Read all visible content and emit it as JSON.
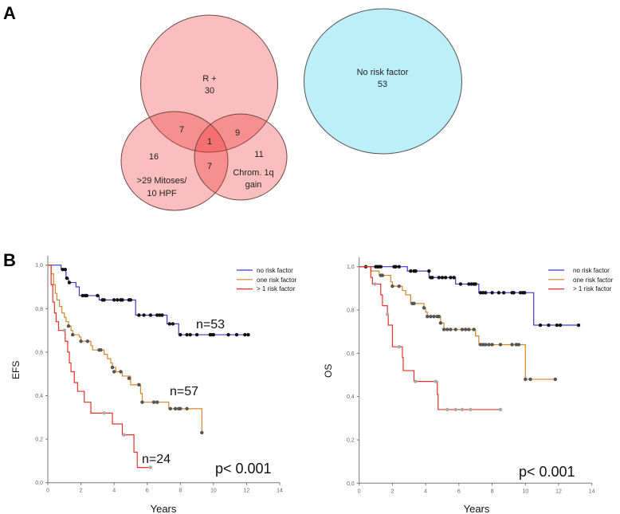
{
  "panels": {
    "a": "A",
    "b": "B"
  },
  "venn": {
    "colors": {
      "risk": "#fbb9b9",
      "none": "#bdeffb"
    },
    "r_plus_label": "R +",
    "r_plus_only": "30",
    "r_mitoses": "7",
    "all_three": "1",
    "r_chrom": "9",
    "mitoses_only": "16",
    "chrom_only": "11",
    "mitoses_chrom": "7",
    "mitoses_label_1": ">29 Mitoses/",
    "mitoses_label_2": "10 HPF",
    "chrom_label_1": "Chrom. 1q",
    "chrom_label_2": "gain",
    "none_label": "No risk factor",
    "none_count": "53"
  },
  "chart_data": [
    {
      "type": "line",
      "subtype": "kaplan-meier",
      "xlabel": "Years",
      "ylabel": "EFS",
      "xlim": [
        0,
        14
      ],
      "ylim": [
        0,
        1
      ],
      "xticks": [
        "0",
        "2",
        "4",
        "6",
        "8",
        "10",
        "12",
        "14"
      ],
      "yticks": [
        "0,0",
        "0,2",
        "0,4",
        "0,6",
        "0,8",
        "1,0"
      ],
      "legend_position": "top-right",
      "pvalue": "p< 0.001",
      "series": [
        {
          "name": "no risk factor",
          "color": "#3a3ad0",
          "censor_color": "#111111",
          "n_label": "n=53",
          "steps": [
            [
              0,
              1
            ],
            [
              0.8,
              0.98
            ],
            [
              1.1,
              0.94
            ],
            [
              1.25,
              0.92
            ],
            [
              1.7,
              0.9
            ],
            [
              1.9,
              0.86
            ],
            [
              3.1,
              0.84
            ],
            [
              5.3,
              0.77
            ],
            [
              7.2,
              0.73
            ],
            [
              7.9,
              0.68
            ]
          ],
          "end": 12.1,
          "censors": [
            [
              0.9,
              0.98
            ],
            [
              1.05,
              0.98
            ],
            [
              1.15,
              0.94
            ],
            [
              1.3,
              0.92
            ],
            [
              2.1,
              0.86
            ],
            [
              2.25,
              0.86
            ],
            [
              2.35,
              0.86
            ],
            [
              3.0,
              0.86
            ],
            [
              3.3,
              0.84
            ],
            [
              3.4,
              0.84
            ],
            [
              4.0,
              0.84
            ],
            [
              4.2,
              0.84
            ],
            [
              4.4,
              0.84
            ],
            [
              4.5,
              0.84
            ],
            [
              4.9,
              0.84
            ],
            [
              5.0,
              0.84
            ],
            [
              5.5,
              0.77
            ],
            [
              5.8,
              0.77
            ],
            [
              6.2,
              0.77
            ],
            [
              6.6,
              0.77
            ],
            [
              6.75,
              0.77
            ],
            [
              6.9,
              0.77
            ],
            [
              7.35,
              0.73
            ],
            [
              7.55,
              0.73
            ],
            [
              8.0,
              0.68
            ],
            [
              8.4,
              0.68
            ],
            [
              8.6,
              0.68
            ],
            [
              9.0,
              0.68
            ],
            [
              9.8,
              0.68
            ],
            [
              9.9,
              0.68
            ],
            [
              10.0,
              0.68
            ],
            [
              10.9,
              0.68
            ],
            [
              11.4,
              0.68
            ],
            [
              11.9,
              0.68
            ],
            [
              12.1,
              0.68
            ]
          ]
        },
        {
          "name": "one risk factor",
          "color": "#d4862a",
          "censor_color": "#555555",
          "n_label": "n=57",
          "steps": [
            [
              0,
              1
            ],
            [
              0.2,
              0.96
            ],
            [
              0.35,
              0.91
            ],
            [
              0.45,
              0.87
            ],
            [
              0.55,
              0.84
            ],
            [
              0.7,
              0.81
            ],
            [
              0.85,
              0.78
            ],
            [
              1.0,
              0.76
            ],
            [
              1.1,
              0.74
            ],
            [
              1.25,
              0.72
            ],
            [
              1.4,
              0.7
            ],
            [
              1.5,
              0.68
            ],
            [
              1.9,
              0.67
            ],
            [
              2.0,
              0.65
            ],
            [
              2.6,
              0.63
            ],
            [
              2.7,
              0.61
            ],
            [
              3.4,
              0.59
            ],
            [
              3.6,
              0.57
            ],
            [
              3.8,
              0.55
            ],
            [
              3.9,
              0.53
            ],
            [
              4.1,
              0.51
            ],
            [
              4.5,
              0.49
            ],
            [
              5.0,
              0.45
            ],
            [
              5.6,
              0.41
            ],
            [
              5.7,
              0.37
            ],
            [
              7.3,
              0.34
            ],
            [
              9.3,
              0.23
            ]
          ],
          "end": 9.3,
          "censors": [
            [
              1.25,
              0.72
            ],
            [
              1.5,
              0.68
            ],
            [
              2.0,
              0.65
            ],
            [
              2.4,
              0.65
            ],
            [
              3.1,
              0.61
            ],
            [
              3.2,
              0.61
            ],
            [
              3.9,
              0.53
            ],
            [
              4.0,
              0.51
            ],
            [
              4.4,
              0.51
            ],
            [
              4.9,
              0.48
            ],
            [
              5.5,
              0.45
            ],
            [
              5.7,
              0.37
            ],
            [
              6.4,
              0.37
            ],
            [
              6.6,
              0.37
            ],
            [
              7.4,
              0.34
            ],
            [
              7.7,
              0.34
            ],
            [
              7.9,
              0.34
            ],
            [
              8.0,
              0.34
            ],
            [
              8.4,
              0.34
            ],
            [
              9.3,
              0.23
            ]
          ]
        },
        {
          "name": "> 1 risk factor",
          "color": "#e8302a",
          "censor_color": "#aaaaaa",
          "n_label": "n=24",
          "steps": [
            [
              0,
              1
            ],
            [
              0.2,
              0.91
            ],
            [
              0.3,
              0.83
            ],
            [
              0.4,
              0.78
            ],
            [
              0.5,
              0.74
            ],
            [
              0.65,
              0.7
            ],
            [
              1.05,
              0.65
            ],
            [
              1.2,
              0.6
            ],
            [
              1.3,
              0.55
            ],
            [
              1.4,
              0.51
            ],
            [
              1.6,
              0.46
            ],
            [
              1.8,
              0.42
            ],
            [
              2.2,
              0.37
            ],
            [
              2.6,
              0.32
            ],
            [
              3.9,
              0.27
            ],
            [
              4.5,
              0.22
            ],
            [
              5.2,
              0.14
            ],
            [
              5.4,
              0.07
            ]
          ],
          "end": 6.2,
          "censors": [
            [
              1.0,
              0.7
            ],
            [
              3.4,
              0.32
            ],
            [
              4.6,
              0.22
            ],
            [
              6.2,
              0.07
            ]
          ]
        }
      ]
    },
    {
      "type": "line",
      "subtype": "kaplan-meier",
      "xlabel": "Years",
      "ylabel": "OS",
      "xlim": [
        0,
        14
      ],
      "ylim": [
        0,
        1
      ],
      "xticks": [
        "0",
        "2",
        "4",
        "6",
        "8",
        "10",
        "12",
        "14"
      ],
      "yticks": [
        "0,0",
        "0,2",
        "0,4",
        "0,6",
        "0,8",
        "1,0"
      ],
      "legend_position": "top-right",
      "pvalue": "p< 0.001",
      "series": [
        {
          "name": "no risk factor",
          "color": "#3a3ad0",
          "censor_color": "#111111",
          "steps": [
            [
              0,
              1
            ],
            [
              2.9,
              0.98
            ],
            [
              4.2,
              0.95
            ],
            [
              5.8,
              0.92
            ],
            [
              7.2,
              0.88
            ],
            [
              10.5,
              0.73
            ]
          ],
          "end": 13.2,
          "censors": [
            [
              0.4,
              1
            ],
            [
              1.0,
              1
            ],
            [
              1.1,
              1
            ],
            [
              1.2,
              1
            ],
            [
              1.3,
              1
            ],
            [
              2.1,
              1
            ],
            [
              2.2,
              1
            ],
            [
              2.4,
              1
            ],
            [
              3.1,
              0.98
            ],
            [
              3.3,
              0.98
            ],
            [
              3.4,
              0.98
            ],
            [
              4.2,
              0.98
            ],
            [
              4.3,
              0.95
            ],
            [
              4.4,
              0.95
            ],
            [
              4.8,
              0.95
            ],
            [
              5.0,
              0.95
            ],
            [
              5.2,
              0.95
            ],
            [
              5.5,
              0.95
            ],
            [
              5.7,
              0.95
            ],
            [
              6.1,
              0.92
            ],
            [
              6.6,
              0.92
            ],
            [
              6.75,
              0.92
            ],
            [
              6.9,
              0.92
            ],
            [
              7.0,
              0.92
            ],
            [
              7.3,
              0.88
            ],
            [
              7.45,
              0.88
            ],
            [
              7.6,
              0.88
            ],
            [
              8.0,
              0.88
            ],
            [
              8.4,
              0.88
            ],
            [
              8.7,
              0.88
            ],
            [
              9.2,
              0.88
            ],
            [
              9.3,
              0.88
            ],
            [
              9.7,
              0.88
            ],
            [
              9.85,
              0.88
            ],
            [
              9.95,
              0.88
            ],
            [
              10.9,
              0.73
            ],
            [
              11.4,
              0.73
            ],
            [
              11.9,
              0.73
            ],
            [
              12.1,
              0.73
            ],
            [
              13.2,
              0.73
            ]
          ]
        },
        {
          "name": "one risk factor",
          "color": "#d4862a",
          "censor_color": "#555555",
          "steps": [
            [
              0,
              1
            ],
            [
              0.7,
              0.98
            ],
            [
              1.2,
              0.96
            ],
            [
              1.9,
              0.93
            ],
            [
              2.0,
              0.91
            ],
            [
              2.6,
              0.89
            ],
            [
              2.8,
              0.87
            ],
            [
              3.1,
              0.83
            ],
            [
              3.9,
              0.81
            ],
            [
              4.0,
              0.79
            ],
            [
              4.1,
              0.77
            ],
            [
              4.9,
              0.74
            ],
            [
              5.1,
              0.71
            ],
            [
              7.0,
              0.68
            ],
            [
              7.2,
              0.64
            ],
            [
              10.0,
              0.48
            ]
          ],
          "end": 11.8,
          "censors": [
            [
              1.3,
              0.96
            ],
            [
              1.4,
              0.96
            ],
            [
              2.0,
              0.91
            ],
            [
              2.4,
              0.91
            ],
            [
              3.2,
              0.83
            ],
            [
              3.3,
              0.83
            ],
            [
              3.9,
              0.81
            ],
            [
              4.1,
              0.77
            ],
            [
              4.3,
              0.77
            ],
            [
              4.5,
              0.77
            ],
            [
              4.7,
              0.77
            ],
            [
              4.8,
              0.77
            ],
            [
              4.9,
              0.74
            ],
            [
              5.1,
              0.71
            ],
            [
              5.3,
              0.71
            ],
            [
              5.5,
              0.71
            ],
            [
              5.8,
              0.71
            ],
            [
              6.2,
              0.71
            ],
            [
              6.4,
              0.71
            ],
            [
              6.6,
              0.71
            ],
            [
              6.9,
              0.71
            ],
            [
              7.3,
              0.64
            ],
            [
              7.45,
              0.64
            ],
            [
              7.6,
              0.64
            ],
            [
              7.8,
              0.64
            ],
            [
              8.0,
              0.64
            ],
            [
              8.5,
              0.64
            ],
            [
              9.2,
              0.64
            ],
            [
              9.45,
              0.64
            ],
            [
              9.6,
              0.64
            ],
            [
              10.0,
              0.48
            ],
            [
              10.3,
              0.48
            ],
            [
              11.8,
              0.48
            ]
          ]
        },
        {
          "name": "> 1 risk factor",
          "color": "#e8302a",
          "censor_color": "#aaaaaa",
          "steps": [
            [
              0,
              1
            ],
            [
              0.7,
              0.95
            ],
            [
              0.8,
              0.92
            ],
            [
              1.3,
              0.87
            ],
            [
              1.4,
              0.82
            ],
            [
              1.7,
              0.78
            ],
            [
              1.75,
              0.73
            ],
            [
              2.0,
              0.63
            ],
            [
              2.6,
              0.58
            ],
            [
              2.65,
              0.52
            ],
            [
              3.3,
              0.47
            ],
            [
              4.7,
              0.41
            ],
            [
              4.75,
              0.34
            ]
          ],
          "end": 8.5,
          "censors": [
            [
              0.95,
              0.92
            ],
            [
              1.7,
              0.78
            ],
            [
              2.4,
              0.63
            ],
            [
              3.4,
              0.47
            ],
            [
              4.6,
              0.47
            ],
            [
              5.3,
              0.34
            ],
            [
              5.8,
              0.34
            ],
            [
              6.2,
              0.34
            ],
            [
              6.7,
              0.34
            ],
            [
              8.5,
              0.34
            ]
          ]
        }
      ]
    }
  ]
}
